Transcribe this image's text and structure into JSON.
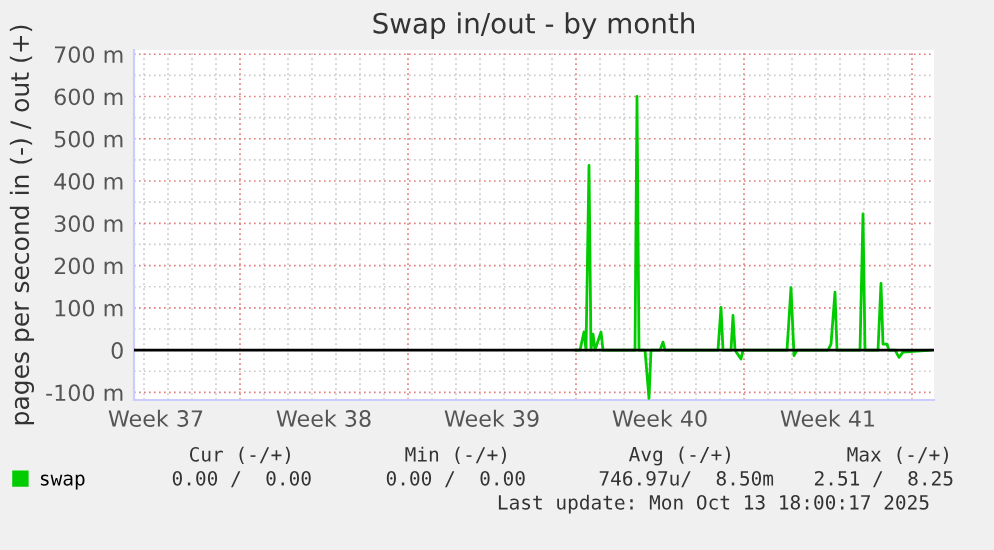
{
  "chart_data": {
    "type": "line",
    "title": "Swap in/out - by month",
    "ylabel": "pages per second in (-) / out (+)",
    "x": [
      "2025-09-29T00:00",
      "2025-09-29T04:00",
      "2025-09-29T08:00",
      "2025-09-29T10:00",
      "2025-09-29T13:00",
      "2025-09-29T15:00",
      "2025-09-29T17:00",
      "2025-09-29T19:00",
      "2025-09-30T01:00",
      "2025-09-30T03:00",
      "2025-09-30T07:00",
      "2025-10-01T01:00",
      "2025-10-01T11:00",
      "2025-10-01T13:00",
      "2025-10-01T15:00",
      "2025-10-01T21:00",
      "2025-10-02T01:00",
      "2025-10-02T03:00",
      "2025-10-02T12:00",
      "2025-10-02T15:00",
      "2025-10-02T17:00",
      "2025-10-03T11:00",
      "2025-10-04T22:00",
      "2025-10-05T01:00",
      "2025-10-05T03:00",
      "2025-10-05T11:00",
      "2025-10-05T13:00",
      "2025-10-05T15:00",
      "2025-10-05T21:00",
      "2025-10-05T23:00",
      "2025-10-06T23:00",
      "2025-10-07T19:00",
      "2025-10-07T23:00",
      "2025-10-08T02:00",
      "2025-10-08T05:00",
      "2025-10-08T16:00",
      "2025-10-09T12:00",
      "2025-10-09T15:00",
      "2025-10-09T19:00",
      "2025-10-09T21:00",
      "2025-10-10T20:00",
      "2025-10-10T23:00",
      "2025-10-11T01:00",
      "2025-10-11T14:00",
      "2025-10-11T17:00",
      "2025-10-11T19:00",
      "2025-10-11T23:00",
      "2025-10-12T01:00",
      "2025-10-12T07:00",
      "2025-10-12T11:00",
      "2025-10-12T15:00",
      "2025-10-13T18:00"
    ],
    "series": [
      {
        "name": "swap",
        "color": "#00cc00",
        "values": [
          0,
          0,
          43,
          0,
          437,
          0,
          38,
          0,
          43,
          0,
          0,
          0,
          0,
          600,
          0,
          0,
          -114,
          0,
          0,
          19,
          0,
          0,
          0,
          101,
          0,
          0,
          82,
          0,
          -21,
          0,
          0,
          0,
          148,
          -13,
          0,
          0,
          0,
          14,
          137,
          0,
          0,
          322,
          0,
          0,
          158,
          14,
          14,
          0,
          0,
          -17,
          -5,
          0
        ]
      }
    ],
    "xlim": [
      "2025-09-10T14:00",
      "2025-10-13T22:00"
    ],
    "xticks": [
      {
        "value": "2025-09-11T12:00",
        "label": "Week 37"
      },
      {
        "value": "2025-09-18T12:00",
        "label": "Week 38"
      },
      {
        "value": "2025-09-25T12:00",
        "label": "Week 39"
      },
      {
        "value": "2025-10-02T12:00",
        "label": "Week 40"
      },
      {
        "value": "2025-10-09T12:00",
        "label": "Week 41"
      }
    ],
    "ylim": [
      -118,
      710
    ],
    "yticks": [
      {
        "value": -100,
        "label": "-100 m"
      },
      0,
      {
        "value": 100,
        "label": "100 m"
      },
      {
        "value": 200,
        "label": "200 m"
      },
      {
        "value": 300,
        "label": "300 m"
      },
      {
        "value": 400,
        "label": "400 m"
      },
      {
        "value": 500,
        "label": "500 m"
      },
      {
        "value": 600,
        "label": "600 m"
      },
      {
        "value": 700,
        "label": "700 m"
      }
    ],
    "ref_lines": [
      {
        "axis": "y",
        "value": 0,
        "color": "#000000"
      }
    ],
    "grid": true,
    "legend": "bottom left",
    "marker": "none",
    "line_style": "solid",
    "annotations": [
      "Cur (-/+)",
      "Min (-/+)",
      "Avg (-/+)",
      "Max (-/+)",
      "0.00 /  0.00",
      "0.00 /  0.00",
      "746.97u/  8.50m",
      "2.51 /  8.25",
      "Last update: Mon Oct 13 18:00:17 2025"
    ]
  }
}
